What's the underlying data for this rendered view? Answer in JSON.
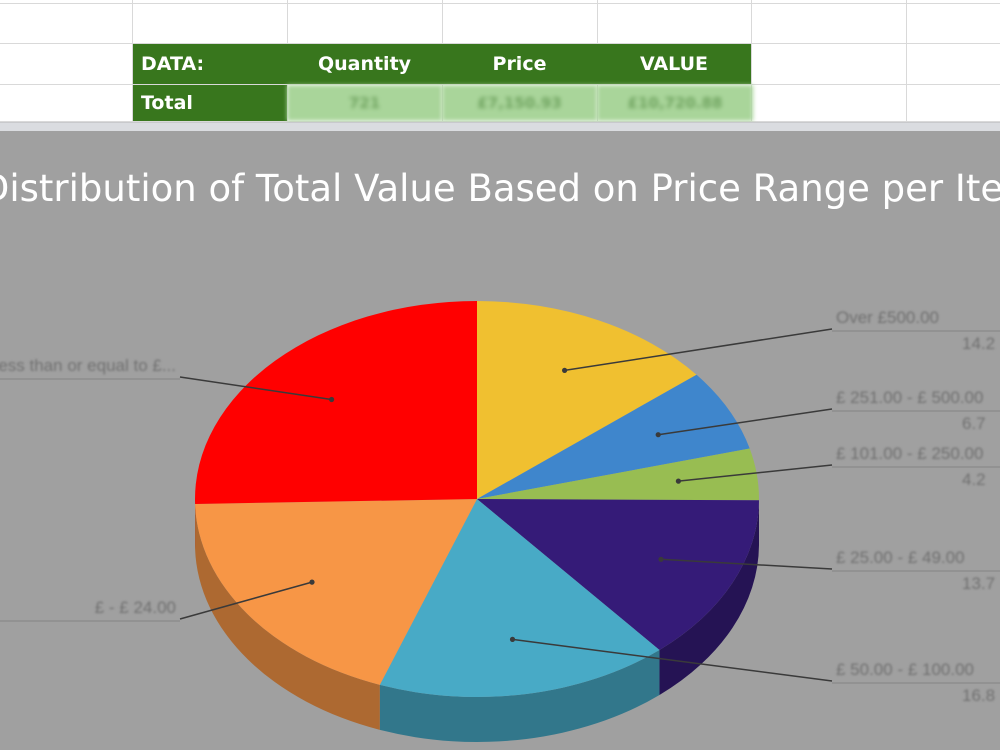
{
  "sheet": {
    "header": {
      "label": "DATA:",
      "quantity": "Quantity",
      "price": "Price",
      "value": "VALUE"
    },
    "total_row": {
      "label": "Total",
      "quantity": "721",
      "price": "£7,150.93",
      "value": "£10,720.88"
    }
  },
  "colors": {
    "header_green": "#38761d",
    "value_fill": "#a9d59a",
    "chart_background": "#a0a0a0"
  },
  "chart_data": {
    "type": "pie",
    "title": "Distribution of Total Value Based on Price Range per Item",
    "style": "3d",
    "start_angle_deg": 0,
    "direction": "clockwise",
    "slices": [
      {
        "label": "Over £500.00",
        "value": 14.2,
        "pct_label": "14.2",
        "color": "#f0c030"
      },
      {
        "label": "£ 251.00 - £ 500.00",
        "value": 6.7,
        "pct_label": "6.7",
        "color": "#3f86cc"
      },
      {
        "label": "£ 101.00 - £ 250.00",
        "value": 4.2,
        "pct_label": "4.2",
        "color": "#98bd52"
      },
      {
        "label": "£ 25.00 - £ 49.00",
        "value": 13.7,
        "pct_label": "13.7",
        "color": "#351b78"
      },
      {
        "label": "£ 50.00 - £ 100.00",
        "value": 16.8,
        "pct_label": "16.8",
        "color": "#48aac6"
      },
      {
        "label": "£ - £ 24.00",
        "value": 19.0,
        "pct_label": "",
        "color": "#f79646"
      },
      {
        "label": "Less than or equal to £...",
        "value": 25.4,
        "pct_label": "",
        "color": "#ff0000"
      }
    ]
  }
}
